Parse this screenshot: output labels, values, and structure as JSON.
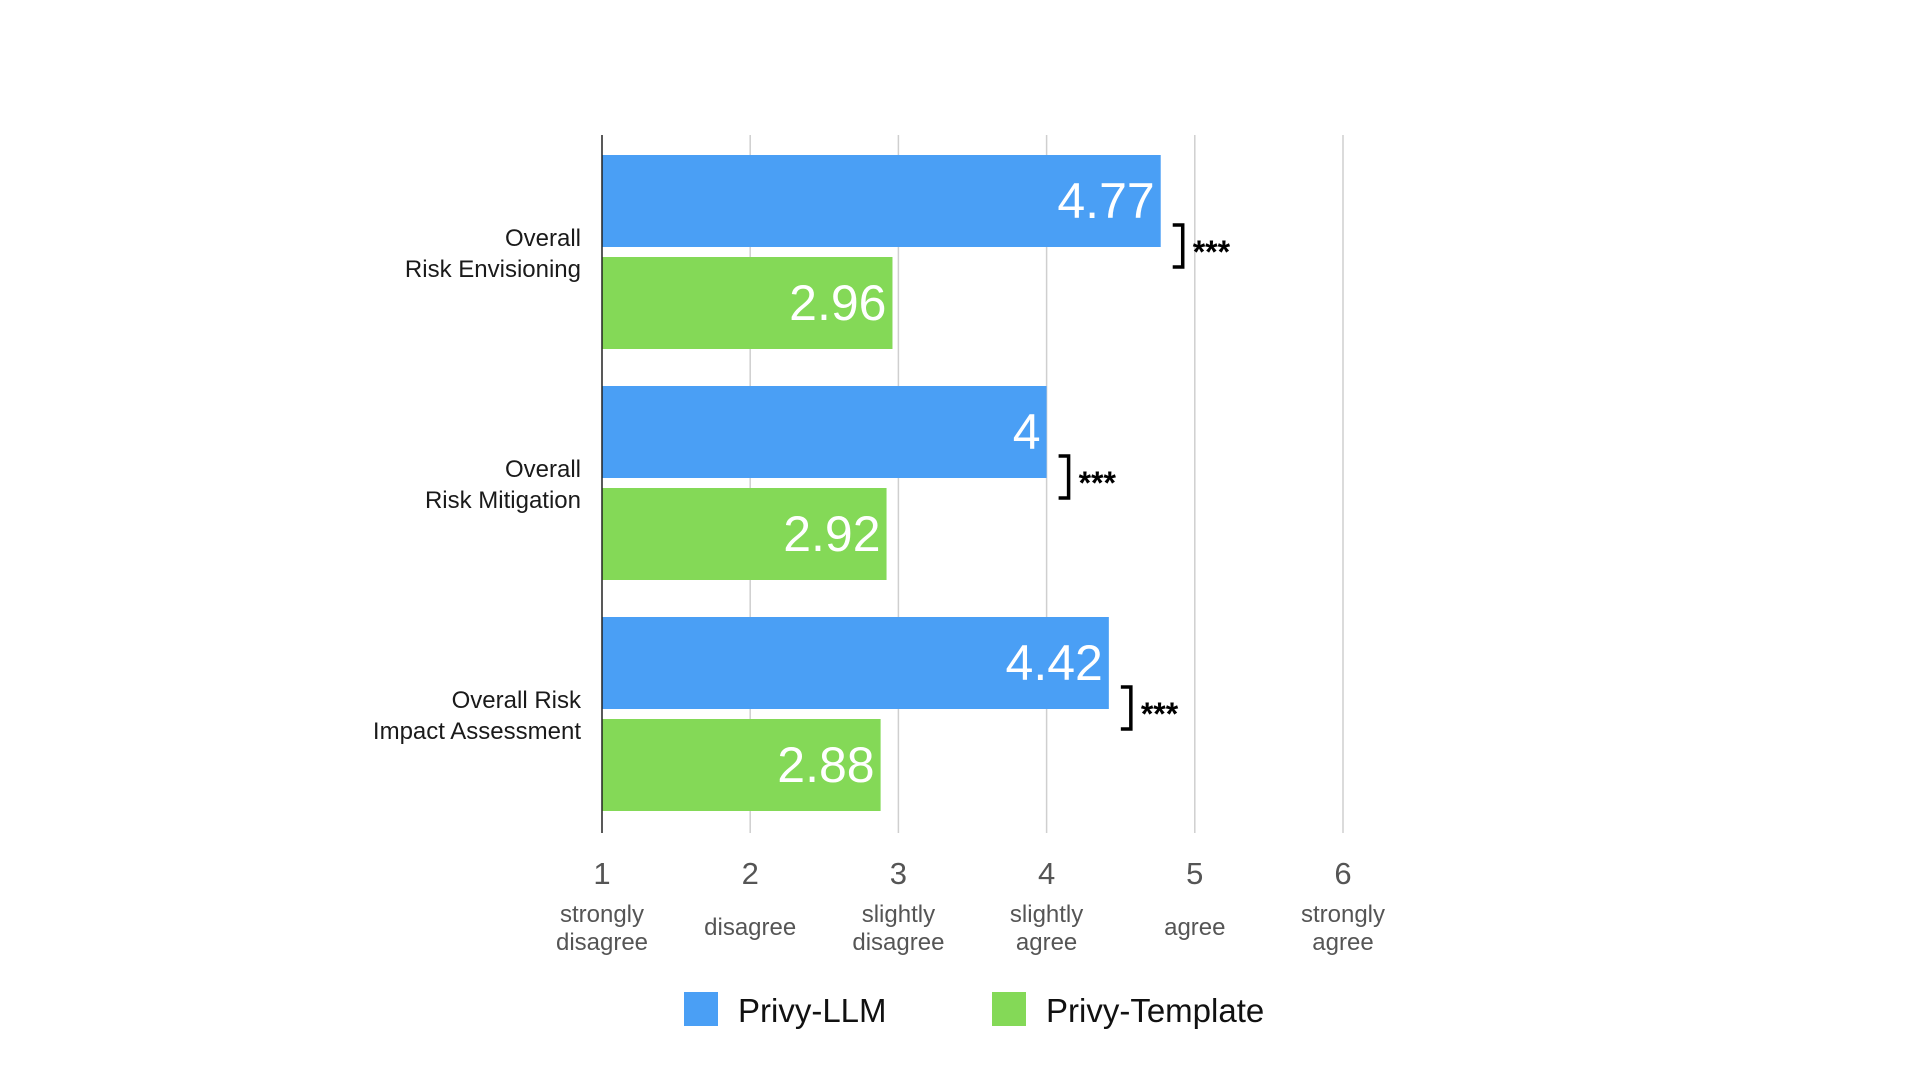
{
  "chart_data": {
    "type": "bar",
    "orientation": "horizontal",
    "title": "",
    "xlabel": "",
    "ylabel": "",
    "xlim": [
      1,
      6
    ],
    "grid": true,
    "legend_position": "bottom",
    "categories": [
      [
        "Overall",
        "Risk Envisioning"
      ],
      [
        "Overall",
        "Risk Mitigation"
      ],
      [
        "Overall Risk",
        "Impact Assessment"
      ]
    ],
    "x_ticks": [
      {
        "value": 1,
        "number": "1",
        "label": [
          "strongly",
          "disagree"
        ]
      },
      {
        "value": 2,
        "number": "2",
        "label": [
          "disagree"
        ]
      },
      {
        "value": 3,
        "number": "3",
        "label": [
          "slightly",
          "disagree"
        ]
      },
      {
        "value": 4,
        "number": "4",
        "label": [
          "slightly",
          "agree"
        ]
      },
      {
        "value": 5,
        "number": "5",
        "label": [
          "agree"
        ]
      },
      {
        "value": 6,
        "number": "6",
        "label": [
          "strongly",
          "agree"
        ]
      }
    ],
    "series": [
      {
        "name": "Privy-LLM",
        "color": "#4a9ff5",
        "values": [
          4.77,
          4,
          4.42
        ],
        "value_labels": [
          "4.77",
          "4",
          "4.42"
        ]
      },
      {
        "name": "Privy-Template",
        "color": "#84d957",
        "values": [
          2.96,
          2.92,
          2.88
        ],
        "value_labels": [
          "2.96",
          "2.92",
          "2.88"
        ]
      }
    ],
    "significance": [
      "***",
      "***",
      "***"
    ]
  }
}
